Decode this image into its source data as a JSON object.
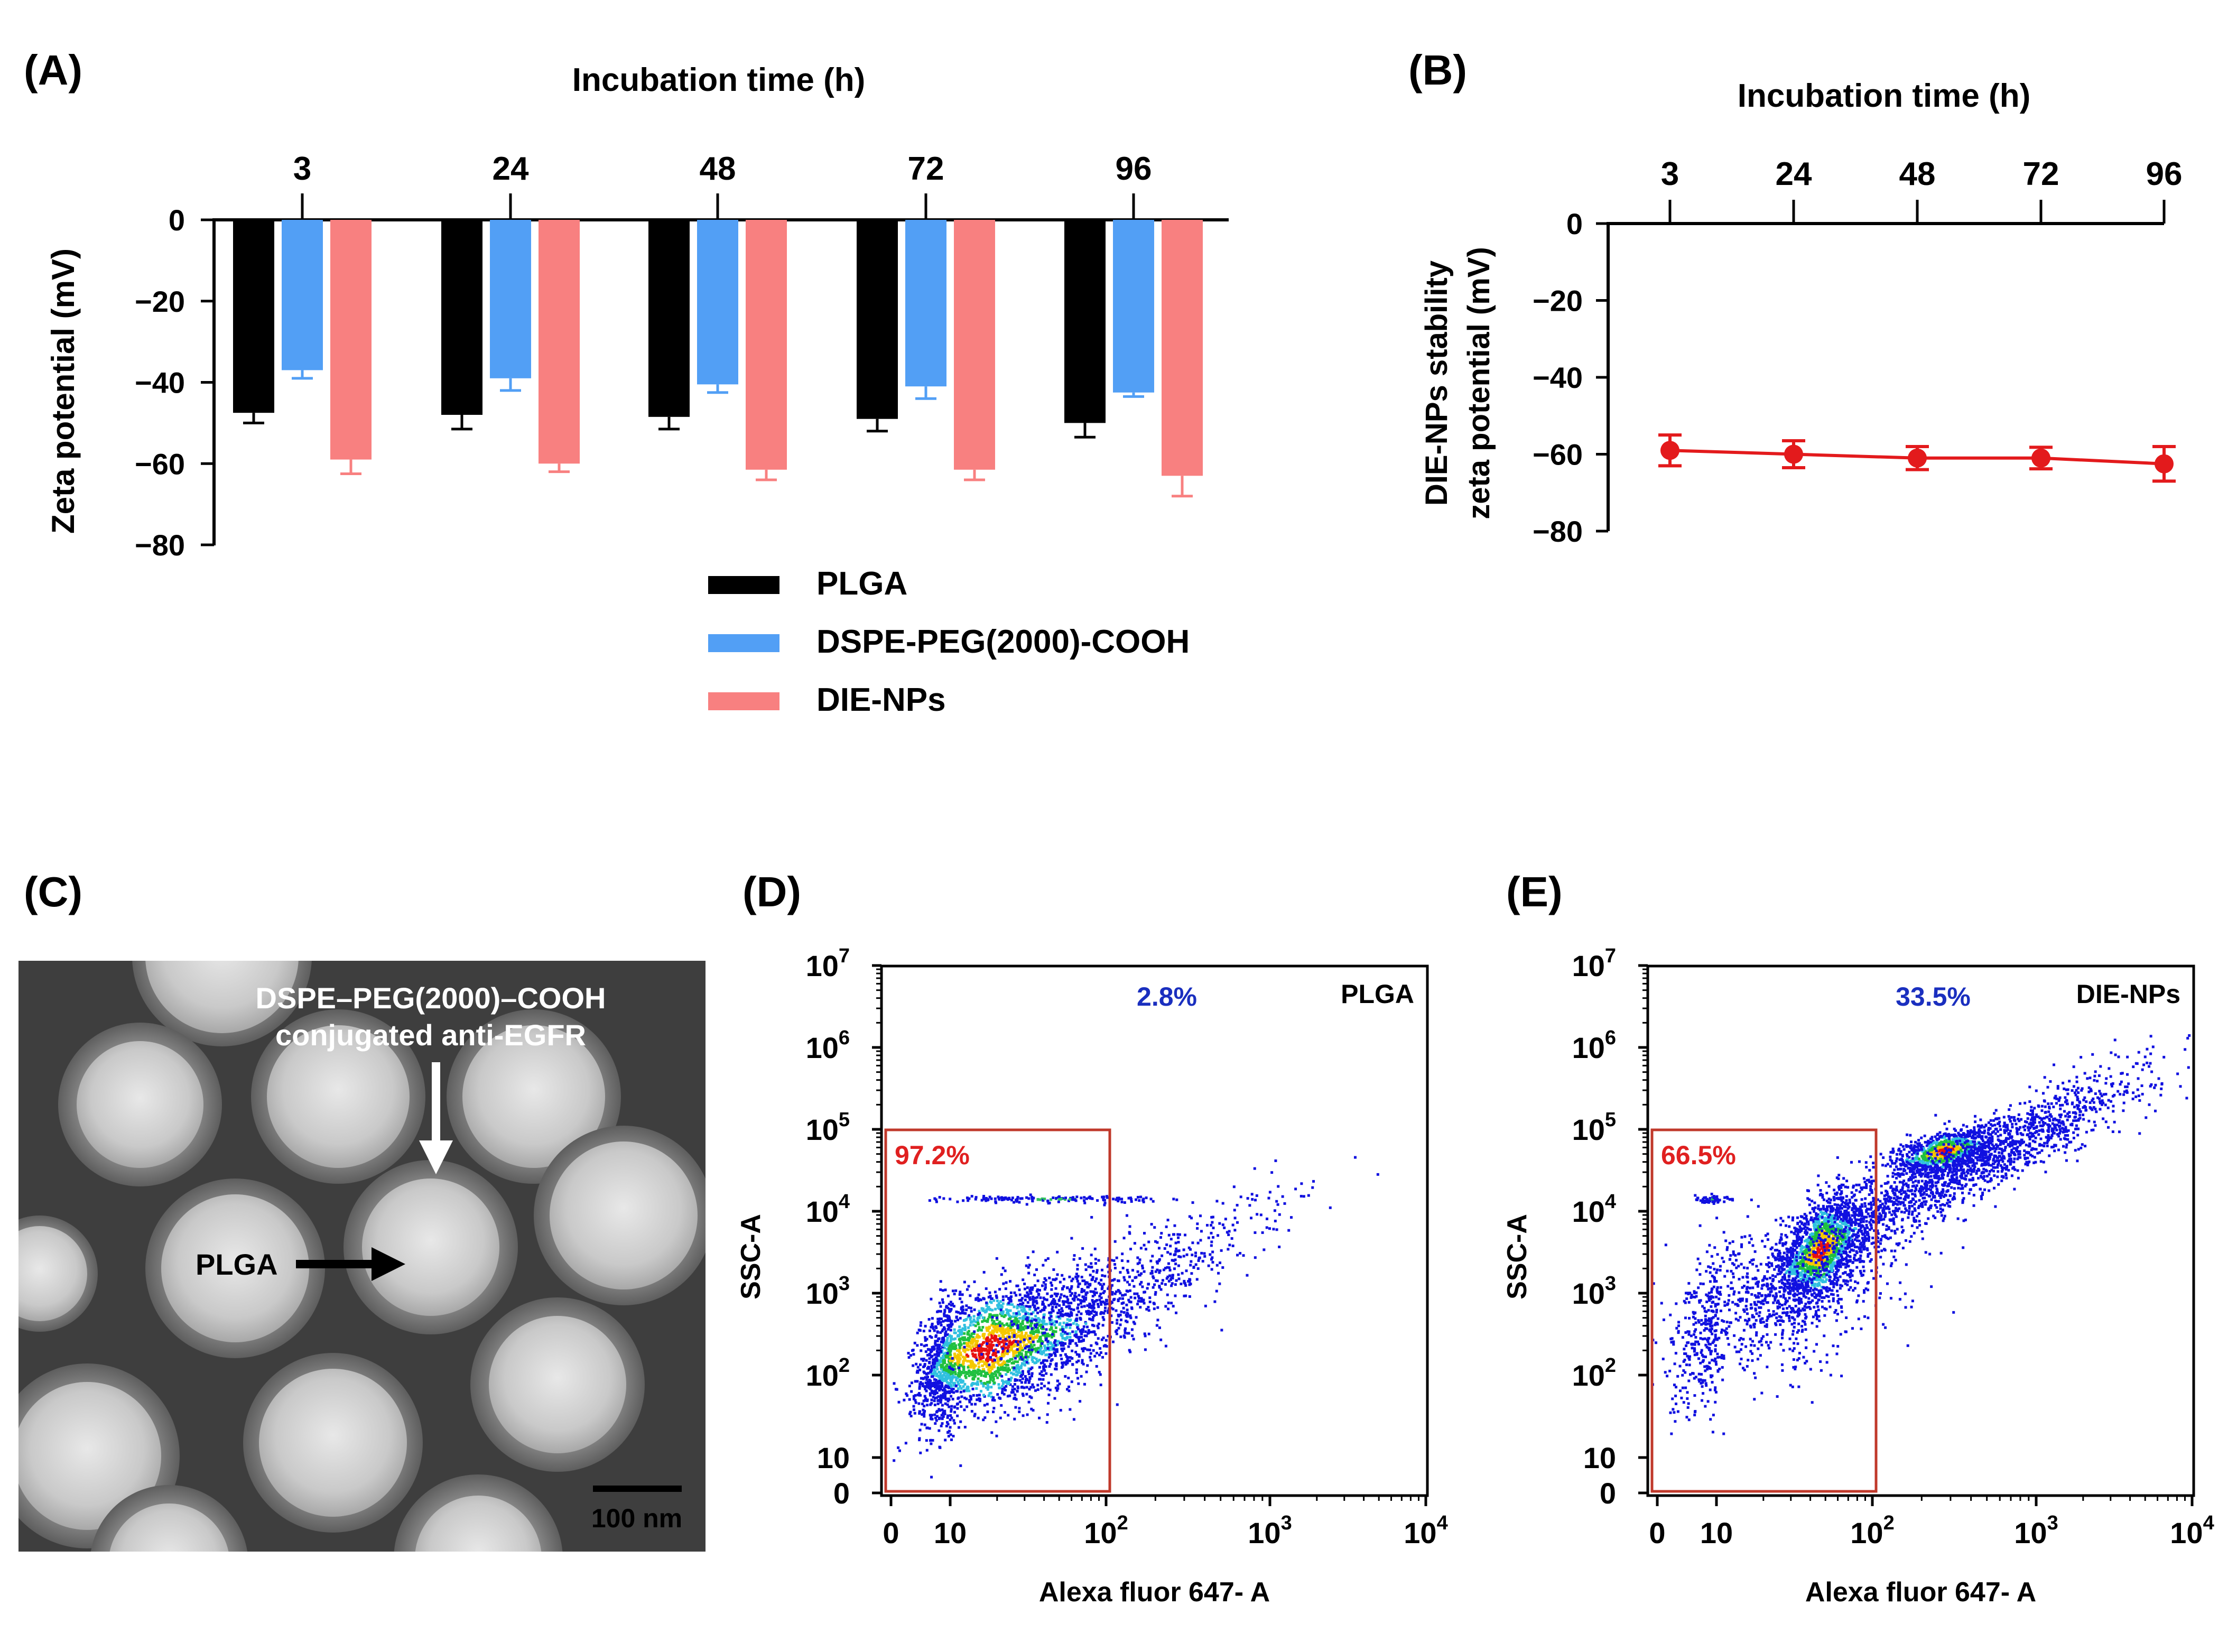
{
  "panel_labels": {
    "a": "(A)",
    "b": "(B)",
    "c": "(C)",
    "d": "(D)",
    "e": "(E)"
  },
  "colors": {
    "plga": "#000000",
    "dspe": "#529ff5",
    "die": "#f88080",
    "die_line": "#e31a1c",
    "gate": "#c0392b",
    "gate_text": "#e02020",
    "pos_text": "#1a2fbf",
    "tem_bg": "#3e3e3e"
  },
  "chart_data": [
    {
      "panel": "A",
      "type": "bar",
      "title": "Incubation time (h)",
      "ylabel": "Zeta potential (mV)",
      "xlabel": "",
      "categories": [
        "3",
        "24",
        "48",
        "72",
        "96"
      ],
      "ylim": [
        -80,
        0
      ],
      "yticks": [
        0,
        -20,
        -40,
        -60,
        -80
      ],
      "ytick_labels": [
        "0",
        "−20",
        "−40",
        "−60",
        "−80"
      ],
      "series": [
        {
          "name": "PLGA",
          "color_key": "plga",
          "values": [
            -47.5,
            -48,
            -48.5,
            -49,
            -50
          ],
          "errors": [
            2.5,
            3.5,
            3,
            3,
            3.5
          ]
        },
        {
          "name": "DSPE-PEG(2000)-COOH",
          "color_key": "dspe",
          "values": [
            -37,
            -39,
            -40.5,
            -41,
            -42.5
          ],
          "errors": [
            2,
            3,
            2,
            3,
            1
          ]
        },
        {
          "name": "DIE-NPs",
          "color_key": "die",
          "values": [
            -59,
            -60,
            -61.5,
            -61.5,
            -63
          ],
          "errors": [
            3.5,
            2,
            2.5,
            2.5,
            5
          ]
        }
      ],
      "legend": [
        "PLGA",
        "DSPE-PEG(2000)-COOH",
        "DIE-NPs"
      ],
      "legend_position": "bottom-right"
    },
    {
      "panel": "B",
      "type": "line",
      "title": "Incubation time (h)",
      "ylabel_line1": "DIE-NPs stability",
      "ylabel_line2": "zeta potential (mV)",
      "x": [
        "3",
        "24",
        "48",
        "72",
        "96"
      ],
      "series": [
        {
          "name": "DIE-NPs",
          "values": [
            -59,
            -60,
            -61,
            -61,
            -62.5
          ],
          "errors": [
            4,
            3.5,
            3,
            2.8,
            4.5
          ]
        }
      ],
      "ylim": [
        -80,
        0
      ],
      "yticks": [
        0,
        -20,
        -40,
        -60,
        -80
      ],
      "ytick_labels": [
        "0",
        "−20",
        "−40",
        "−60",
        "−80"
      ]
    },
    {
      "panel": "D",
      "type": "scatter",
      "title": "PLGA",
      "xlabel": "Alexa fluor 647- A",
      "ylabel": "SSC-A",
      "x_scale": "log",
      "y_scale": "log",
      "xtick_labels": [
        "0",
        "10",
        "10",
        "10",
        "10"
      ],
      "xtick_exponents": [
        "",
        "",
        "2",
        "3",
        "4"
      ],
      "ytick_labels": [
        "0",
        "10",
        "10",
        "10",
        "10",
        "10",
        "10",
        "10"
      ],
      "ytick_exponents": [
        "",
        "",
        "2",
        "3",
        "4",
        "5",
        "6",
        "7"
      ],
      "gate_negative": "97.2%",
      "gate_positive": "2.8%",
      "gate_x_max": 100,
      "gate_y_max": 100000
    },
    {
      "panel": "E",
      "type": "scatter",
      "title": "DIE-NPs",
      "xlabel": "Alexa fluor 647- A",
      "ylabel": "SSC-A",
      "x_scale": "log",
      "y_scale": "log",
      "xtick_labels": [
        "0",
        "10",
        "10",
        "10",
        "10"
      ],
      "xtick_exponents": [
        "",
        "",
        "2",
        "3",
        "4"
      ],
      "ytick_labels": [
        "0",
        "10",
        "10",
        "10",
        "10",
        "10",
        "10",
        "10"
      ],
      "ytick_exponents": [
        "",
        "",
        "2",
        "3",
        "4",
        "5",
        "6",
        "7"
      ],
      "gate_negative": "66.5%",
      "gate_positive": "33.5%",
      "gate_x_max": 100,
      "gate_y_max": 100000
    }
  ],
  "tem": {
    "annotation_line1": "DSPE–PEG(2000)–COOH",
    "annotation_line2": "conjugated anti-EGFR",
    "core_label": "PLGA",
    "scale_bar": "100 nm"
  }
}
